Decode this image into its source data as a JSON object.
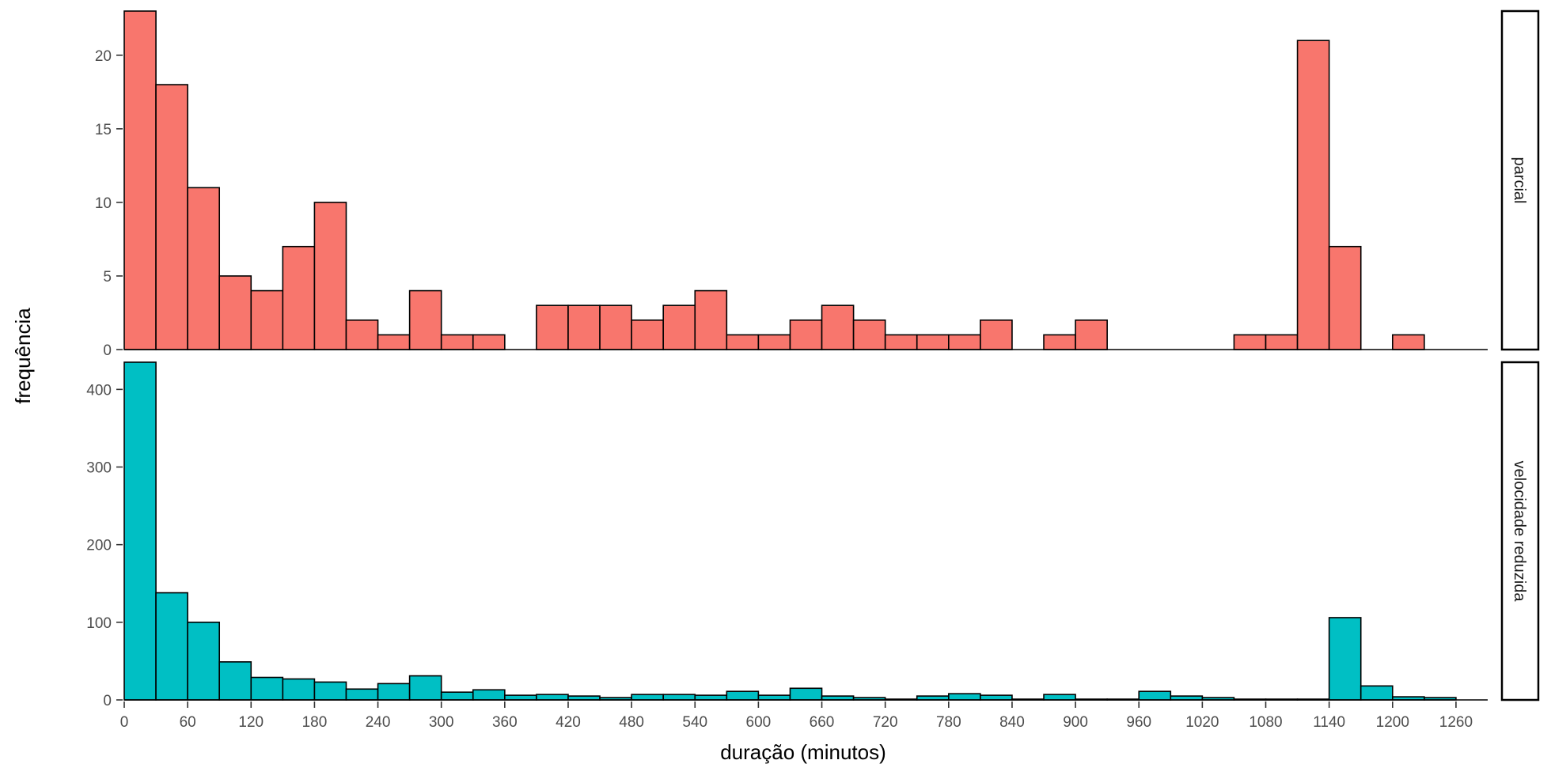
{
  "chart_data": {
    "type": "bar",
    "subtype": "faceted-histogram",
    "xlabel": "duração (minutos)",
    "ylabel": "frequência",
    "bin_width": 30,
    "bin_start": 0,
    "xlim": [
      0,
      1290
    ],
    "x_ticks": [
      0,
      60,
      120,
      180,
      240,
      300,
      360,
      420,
      480,
      540,
      600,
      660,
      720,
      780,
      840,
      900,
      960,
      1020,
      1080,
      1140,
      1200,
      1260
    ],
    "grid": false,
    "legend": "none",
    "facets": [
      {
        "strip_label": "parcial",
        "color": "#F8766D",
        "ylim": [
          0,
          23
        ],
        "y_ticks": [
          0,
          5,
          10,
          15,
          20
        ],
        "values": [
          23,
          18,
          11,
          5,
          4,
          7,
          10,
          2,
          1,
          4,
          1,
          1,
          0,
          3,
          3,
          3,
          2,
          3,
          4,
          1,
          1,
          2,
          3,
          2,
          1,
          1,
          1,
          2,
          0,
          1,
          2,
          0,
          0,
          0,
          0,
          1,
          1,
          21,
          7,
          0,
          1,
          0,
          0
        ]
      },
      {
        "strip_label": "velocidade reduzida",
        "color": "#00BFC4",
        "ylim": [
          0,
          435
        ],
        "y_ticks": [
          0,
          100,
          200,
          300,
          400
        ],
        "values": [
          435,
          138,
          100,
          49,
          29,
          27,
          23,
          14,
          21,
          31,
          10,
          13,
          6,
          7,
          5,
          3,
          7,
          7,
          6,
          11,
          6,
          15,
          5,
          3,
          1,
          5,
          8,
          6,
          1,
          7,
          1,
          1,
          11,
          5,
          3,
          1,
          1,
          1,
          106,
          18,
          4,
          3,
          0
        ]
      }
    ]
  }
}
